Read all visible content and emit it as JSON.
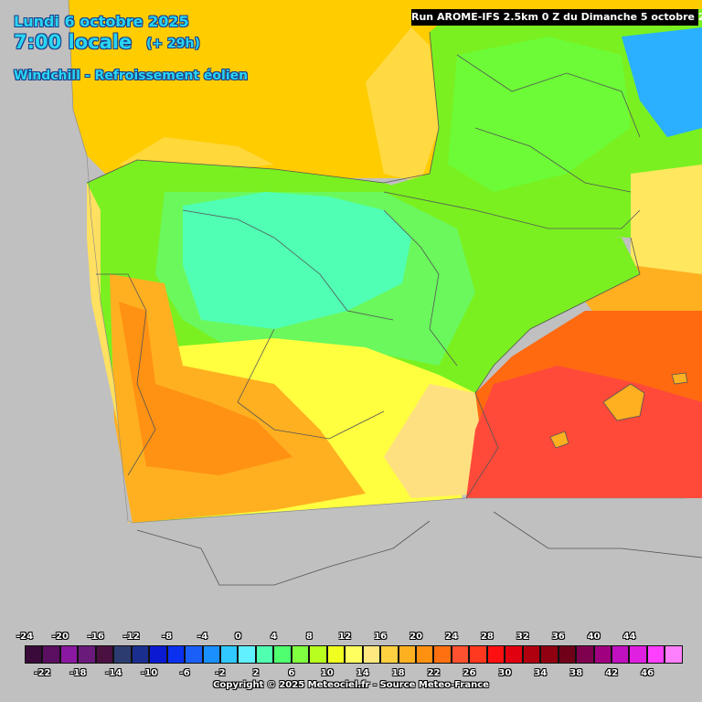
{
  "header": {
    "date": "Lundi 6 octobre 2025",
    "hour": "7:00 locale",
    "lead": "(+ 29h)",
    "parameter": "Windchill - Refroissement éolien"
  },
  "run_info": "Run AROME-IFS 2.5km 0 Z du Dimanche 5 octobre 2025",
  "copyright": "Copyright © 2025 Meteociel.fr - Source Meteo-France",
  "legend": {
    "upper_labels": [
      "-24",
      "-20",
      "-16",
      "-12",
      "-8",
      "-4",
      "0",
      "4",
      "8",
      "12",
      "16",
      "20",
      "24",
      "28",
      "32",
      "36",
      "40",
      "44"
    ],
    "lower_labels": [
      "-22",
      "-18",
      "-14",
      "-10",
      "-6",
      "-2",
      "2",
      "6",
      "10",
      "14",
      "18",
      "22",
      "26",
      "30",
      "34",
      "38",
      "42",
      "46"
    ],
    "colors": [
      "#3a0a3a",
      "#5a0f60",
      "#8a18a0",
      "#6a1a7a",
      "#4a1040",
      "#2c3c70",
      "#1a2e90",
      "#0a1ad0",
      "#0a30f0",
      "#1a60f8",
      "#1a90ff",
      "#30c8ff",
      "#60f0ff",
      "#50ffb0",
      "#50ff70",
      "#80ff40",
      "#b8ff20",
      "#f0ff20",
      "#ffff60",
      "#ffe880",
      "#ffd040",
      "#ffb020",
      "#ff9010",
      "#ff7010",
      "#ff5030",
      "#ff3820",
      "#ff1010",
      "#e00010",
      "#b00010",
      "#900010",
      "#700018",
      "#800050",
      "#a00080",
      "#c010c0",
      "#e020e0",
      "#ff40ff",
      "#ff80ff"
    ]
  },
  "map": {
    "colors": {
      "sea_background": "#c0c0c0",
      "warm_sea": "#ffcc00",
      "yellow_sea": "#ffe860",
      "orange_sea": "#ff6a10",
      "red_sea": "#ff4a3a",
      "green": "#7af020",
      "light_green": "#5cff60",
      "cyan": "#40ffe0",
      "blue": "#2ab0ff",
      "yellow": "#ffff40",
      "light_orange": "#ffb020",
      "dark_orange": "#ff8a10",
      "border_line": "#555555"
    }
  }
}
